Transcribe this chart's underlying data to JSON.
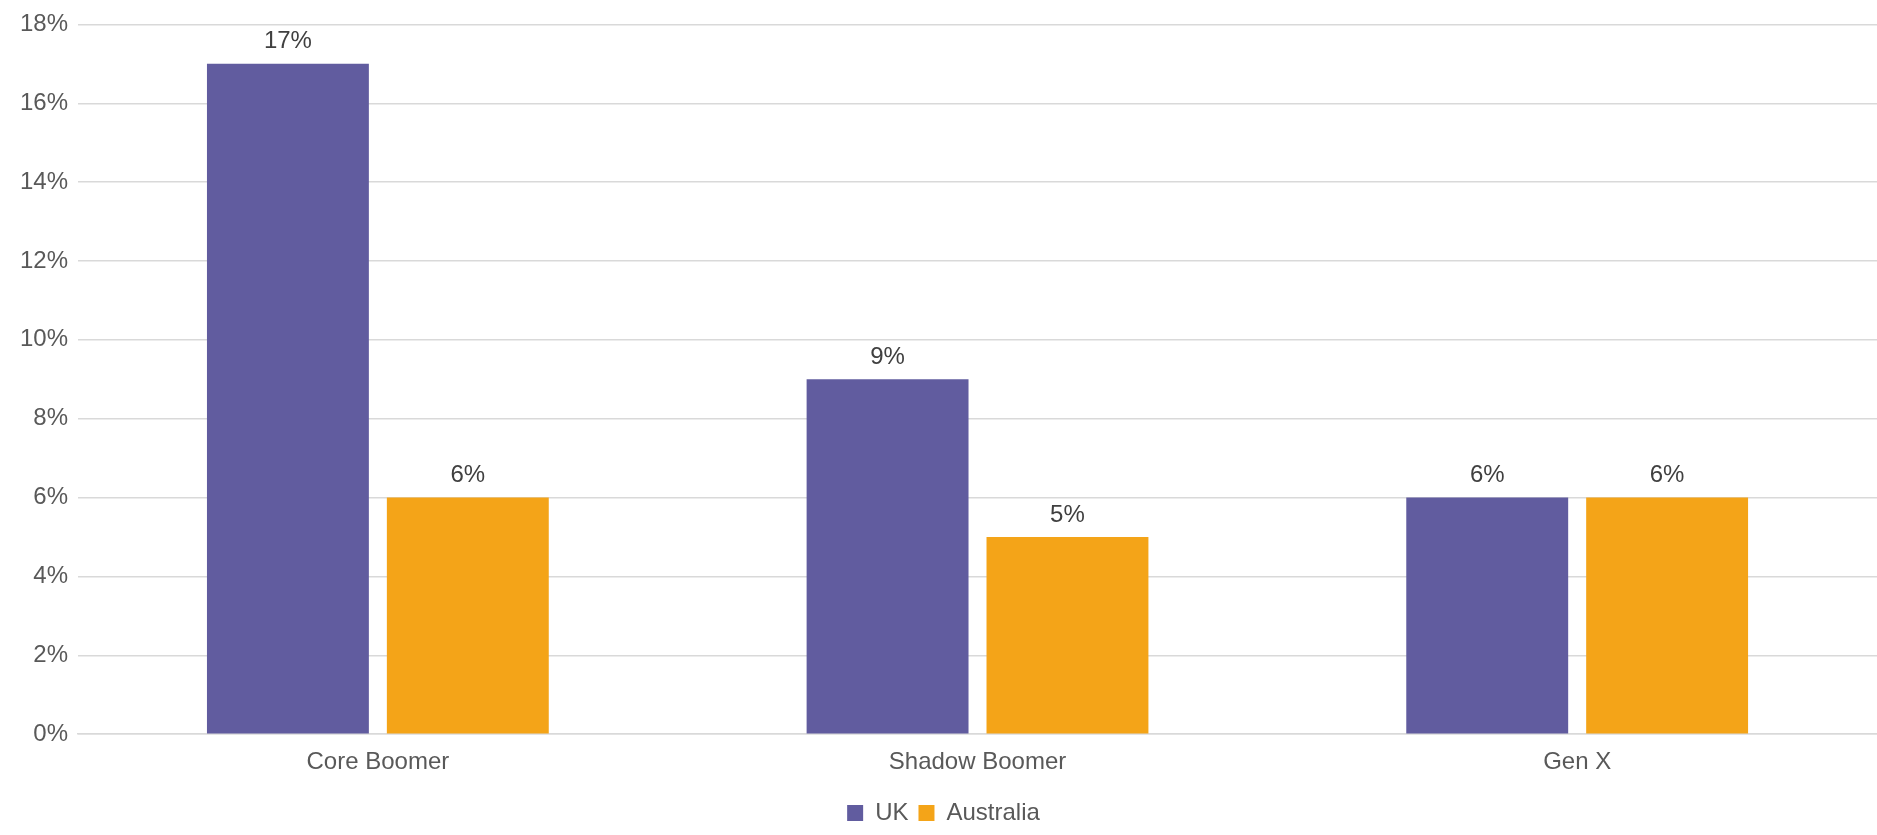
{
  "chart_data": {
    "type": "bar",
    "categories": [
      "Core Boomer",
      "Shadow Boomer",
      "Gen X"
    ],
    "series": [
      {
        "name": "UK",
        "color": "#615c9f",
        "values": [
          17,
          9,
          6
        ],
        "value_labels": [
          "17%",
          "9%",
          "6%"
        ]
      },
      {
        "name": "Australia",
        "color": "#f4a418",
        "values": [
          6,
          5,
          6
        ],
        "value_labels": [
          "6%",
          "5%",
          "6%"
        ]
      }
    ],
    "ylim": [
      0,
      18
    ],
    "yticks": [
      {
        "value": 0,
        "label": "0%"
      },
      {
        "value": 2,
        "label": "2%"
      },
      {
        "value": 4,
        "label": "4%"
      },
      {
        "value": 6,
        "label": "6%"
      },
      {
        "value": 8,
        "label": "8%"
      },
      {
        "value": 10,
        "label": "10%"
      },
      {
        "value": 12,
        "label": "12%"
      },
      {
        "value": 14,
        "label": "14%"
      },
      {
        "value": 16,
        "label": "16%"
      },
      {
        "value": 18,
        "label": "18%"
      }
    ],
    "grid": "y",
    "legend": "bottom"
  }
}
